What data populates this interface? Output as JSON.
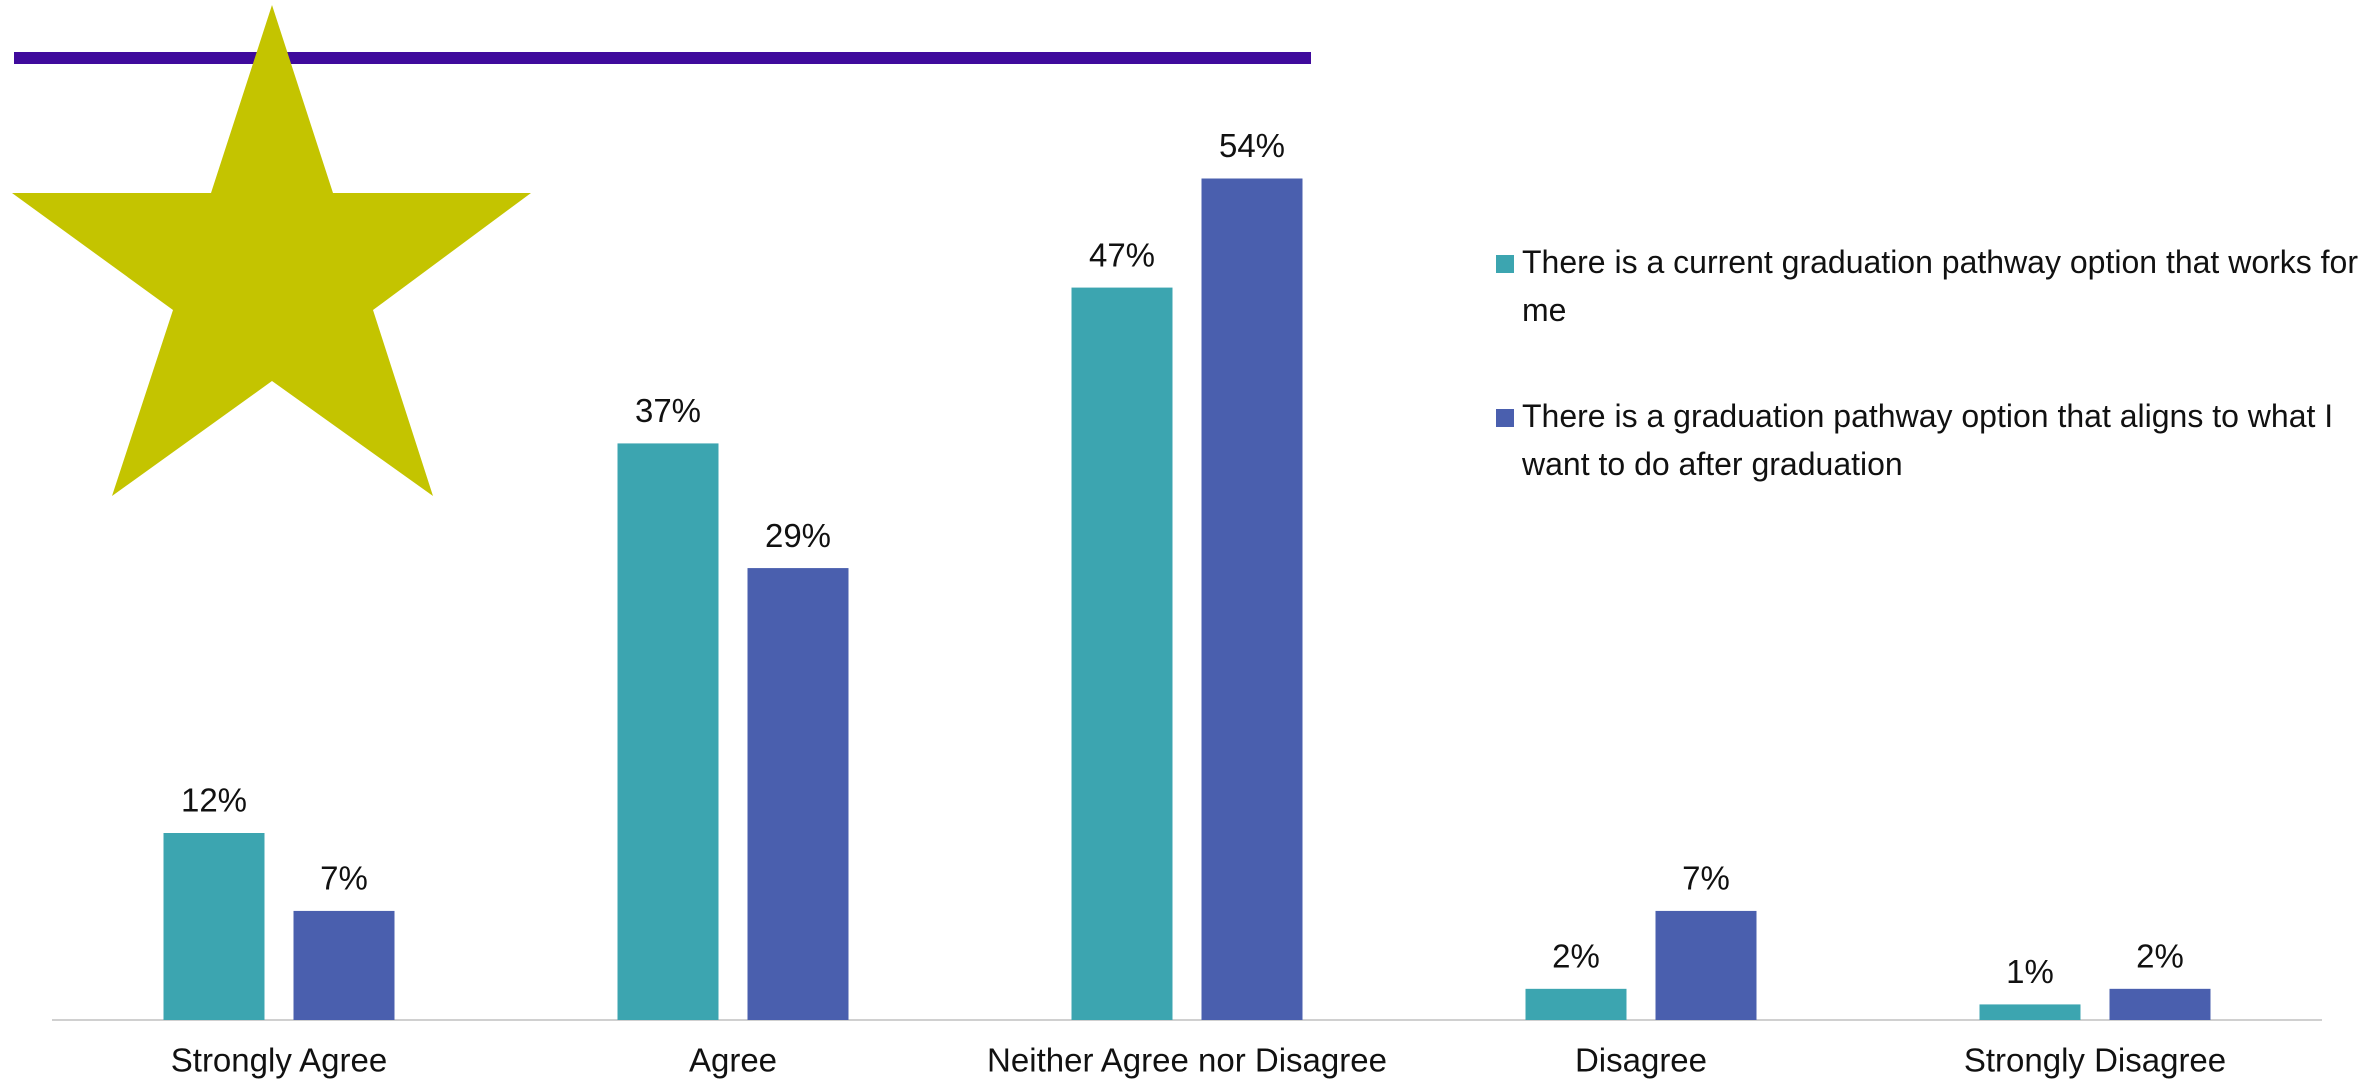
{
  "chart_data": {
    "type": "bar",
    "categories": [
      "Strongly Agree",
      "Agree",
      "Neither Agree nor Disagree",
      "Disagree",
      "Strongly Disagree"
    ],
    "series": [
      {
        "name": "There is a current graduation pathway option that works for me",
        "color": "#3ca5b0",
        "values": [
          12,
          37,
          47,
          2,
          1
        ],
        "value_labels": [
          "12%",
          "37%",
          "47%",
          "2%",
          "1%"
        ]
      },
      {
        "name": "There is a graduation pathway option that aligns to what I want to do after graduation",
        "color": "#4a5fae",
        "values": [
          7,
          29,
          54,
          7,
          2
        ],
        "value_labels": [
          "7%",
          "29%",
          "54%",
          "7%",
          "2%"
        ]
      }
    ],
    "ylim": [
      0,
      60
    ],
    "legend": "right"
  }
}
